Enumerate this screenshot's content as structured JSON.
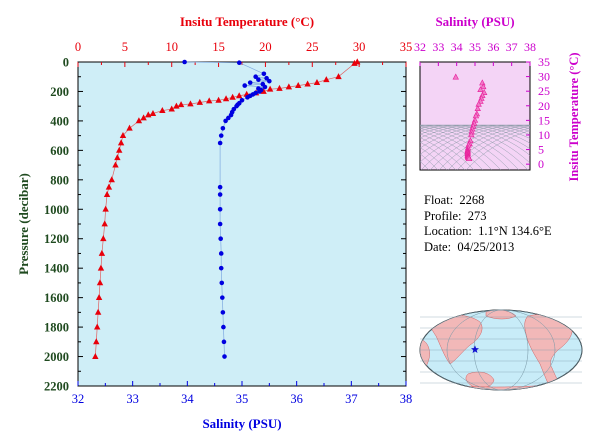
{
  "info": {
    "float_label": "Float:",
    "float_value": "2268",
    "profile_label": "Profile:",
    "profile_value": "273",
    "location_label": "Location:",
    "location_value": "1.1°N  134.6°E",
    "date_label": "Date:",
    "date_value": "04/25/2013"
  },
  "credit": "",
  "colors": {
    "temperature": "#e8000b",
    "salinity": "#0000e0",
    "ts": "#e81e9c",
    "plot_bg": "#cfeef7",
    "axis_left": "#1f4a1f",
    "salinity_axis": "#cc00cc"
  },
  "chart_data": [
    {
      "type": "line",
      "title": "",
      "ylabel": "Pressure (decibar)",
      "ylim": [
        2200,
        0
      ],
      "yticks": [
        0,
        200,
        400,
        600,
        800,
        1000,
        1200,
        1400,
        1600,
        1800,
        2000,
        2200
      ],
      "top_axis": {
        "label": "Insitu Temperature (°C)",
        "lim": [
          0,
          35
        ],
        "ticks": [
          0,
          5,
          10,
          15,
          20,
          25,
          30,
          35
        ]
      },
      "bottom_axis": {
        "label": "Salinity (PSU)",
        "lim": [
          32,
          38
        ],
        "ticks": [
          32,
          33,
          34,
          35,
          36,
          37,
          38
        ]
      },
      "grid": false,
      "series": [
        {
          "name": "",
          "marker": "triangle",
          "axis": "top",
          "points": [
            [
              29.8,
              0
            ],
            [
              29.5,
              10
            ],
            [
              27.8,
              100
            ],
            [
              26.5,
              120
            ],
            [
              25.5,
              140
            ],
            [
              24.5,
              150
            ],
            [
              23.5,
              160
            ],
            [
              22.5,
              170
            ],
            [
              21.5,
              180
            ],
            [
              20.5,
              185
            ],
            [
              19.8,
              200
            ],
            [
              19.0,
              210
            ],
            [
              18.0,
              220
            ],
            [
              17.2,
              230
            ],
            [
              16.5,
              240
            ],
            [
              15.8,
              250
            ],
            [
              15.0,
              260
            ],
            [
              14.0,
              265
            ],
            [
              13.0,
              275
            ],
            [
              12.0,
              285
            ],
            [
              11.0,
              290
            ],
            [
              10.5,
              300
            ],
            [
              10.0,
              320
            ],
            [
              9.0,
              330
            ],
            [
              8.0,
              350
            ],
            [
              7.5,
              360
            ],
            [
              7.0,
              380
            ],
            [
              6.5,
              400
            ],
            [
              5.5,
              450
            ],
            [
              4.8,
              500
            ],
            [
              4.6,
              550
            ],
            [
              4.4,
              600
            ],
            [
              4.2,
              650
            ],
            [
              4.0,
              700
            ],
            [
              3.6,
              800
            ],
            [
              3.3,
              850
            ],
            [
              3.1,
              900
            ],
            [
              2.95,
              1000
            ],
            [
              2.85,
              1100
            ],
            [
              2.7,
              1200
            ],
            [
              2.55,
              1300
            ],
            [
              2.45,
              1400
            ],
            [
              2.35,
              1500
            ],
            [
              2.25,
              1600
            ],
            [
              2.15,
              1700
            ],
            [
              2.05,
              1800
            ],
            [
              1.95,
              1900
            ],
            [
              1.85,
              2000
            ]
          ]
        },
        {
          "name": "",
          "marker": "circle",
          "axis": "bottom",
          "points": [
            [
              33.95,
              0
            ],
            [
              34.95,
              5
            ],
            [
              35.4,
              80
            ],
            [
              35.25,
              100
            ],
            [
              35.45,
              110
            ],
            [
              35.3,
              120
            ],
            [
              35.5,
              130
            ],
            [
              35.15,
              140
            ],
            [
              35.38,
              150
            ],
            [
              35.05,
              160
            ],
            [
              35.42,
              170
            ],
            [
              35.3,
              180
            ],
            [
              35.35,
              190
            ],
            [
              35.32,
              200
            ],
            [
              35.25,
              210
            ],
            [
              35.2,
              220
            ],
            [
              35.15,
              230
            ],
            [
              35.1,
              240
            ],
            [
              35.0,
              260
            ],
            [
              34.95,
              280
            ],
            [
              34.92,
              290
            ],
            [
              34.9,
              300
            ],
            [
              34.85,
              320
            ],
            [
              34.82,
              340
            ],
            [
              34.8,
              360
            ],
            [
              34.75,
              380
            ],
            [
              34.7,
              400
            ],
            [
              34.65,
              450
            ],
            [
              34.62,
              500
            ],
            [
              34.6,
              550
            ],
            [
              34.6,
              850
            ],
            [
              34.6,
              900
            ],
            [
              34.6,
              1000
            ],
            [
              34.6,
              1100
            ],
            [
              34.61,
              1200
            ],
            [
              34.62,
              1300
            ],
            [
              34.62,
              1400
            ],
            [
              34.63,
              1500
            ],
            [
              34.64,
              1600
            ],
            [
              34.65,
              1700
            ],
            [
              34.66,
              1800
            ],
            [
              34.67,
              1900
            ],
            [
              34.68,
              2000
            ]
          ]
        }
      ]
    },
    {
      "type": "scatter",
      "title": "Salinity (PSU)",
      "ylabel": "Insitu Temperature (°C)",
      "xlim": [
        32,
        38
      ],
      "xticks": [
        32,
        33,
        34,
        35,
        36,
        37,
        38
      ],
      "ylim": [
        -2,
        35
      ],
      "yticks": [
        0,
        5,
        10,
        15,
        20,
        25,
        30,
        35
      ],
      "grid": false,
      "points": [
        [
          33.95,
          29.8
        ],
        [
          35.4,
          27.8
        ],
        [
          35.45,
          26.5
        ],
        [
          35.3,
          25.5
        ],
        [
          35.5,
          24.5
        ],
        [
          35.4,
          23.5
        ],
        [
          35.35,
          22.5
        ],
        [
          35.3,
          21.5
        ],
        [
          35.2,
          20.5
        ],
        [
          35.15,
          19.0
        ],
        [
          35.1,
          17.2
        ],
        [
          35.05,
          16.5
        ],
        [
          35.0,
          15.0
        ],
        [
          34.95,
          14.0
        ],
        [
          34.9,
          13.0
        ],
        [
          34.85,
          12.0
        ],
        [
          34.82,
          11.0
        ],
        [
          34.8,
          10.0
        ],
        [
          34.75,
          8.0
        ],
        [
          34.7,
          7.0
        ],
        [
          34.65,
          6.5
        ],
        [
          34.62,
          5.5
        ],
        [
          34.6,
          4.8
        ],
        [
          34.6,
          4.4
        ],
        [
          34.6,
          4.0
        ],
        [
          34.6,
          3.6
        ],
        [
          34.6,
          3.1
        ],
        [
          34.61,
          2.85
        ],
        [
          34.62,
          2.55
        ],
        [
          34.63,
          2.35
        ],
        [
          34.65,
          2.15
        ],
        [
          34.68,
          1.85
        ]
      ]
    },
    {
      "type": "map",
      "title": "",
      "marker": {
        "lat": 1.1,
        "lon": 134.6,
        "symbol": "star",
        "color": "#1010d0"
      }
    }
  ]
}
